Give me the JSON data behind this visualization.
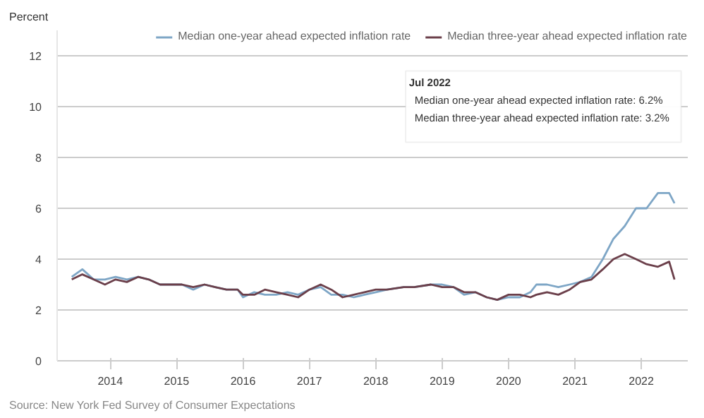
{
  "chart_data": {
    "type": "line",
    "ylabel": "Percent",
    "x": [
      2013.42,
      2013.58,
      2013.75,
      2013.92,
      2014.08,
      2014.25,
      2014.42,
      2014.58,
      2014.75,
      2014.92,
      2015.08,
      2015.25,
      2015.42,
      2015.58,
      2015.75,
      2015.92,
      2016.0,
      2016.17,
      2016.33,
      2016.5,
      2016.67,
      2016.83,
      2017.0,
      2017.17,
      2017.33,
      2017.5,
      2017.67,
      2017.83,
      2018.0,
      2018.17,
      2018.42,
      2018.58,
      2018.83,
      2019.0,
      2019.17,
      2019.33,
      2019.5,
      2019.67,
      2019.83,
      2020.0,
      2020.17,
      2020.33,
      2020.42,
      2020.58,
      2020.75,
      2020.92,
      2021.08,
      2021.25,
      2021.42,
      2021.58,
      2021.75,
      2021.92,
      2022.08,
      2022.25,
      2022.42,
      2022.5
    ],
    "series": [
      {
        "name": "Median one-year ahead expected inflation rate",
        "color": "#7ea6c6",
        "values": [
          3.3,
          3.6,
          3.2,
          3.2,
          3.3,
          3.2,
          3.3,
          3.2,
          3.0,
          3.0,
          3.0,
          2.8,
          3.0,
          2.9,
          2.8,
          2.8,
          2.5,
          2.7,
          2.6,
          2.6,
          2.7,
          2.6,
          2.8,
          2.9,
          2.6,
          2.6,
          2.5,
          2.6,
          2.7,
          2.8,
          2.9,
          2.9,
          3.0,
          3.0,
          2.9,
          2.6,
          2.7,
          2.5,
          2.4,
          2.5,
          2.5,
          2.7,
          3.0,
          3.0,
          2.9,
          3.0,
          3.1,
          3.3,
          4.0,
          4.8,
          5.3,
          6.0,
          6.0,
          6.6,
          6.6,
          6.2
        ]
      },
      {
        "name": "Median three-year ahead expected inflation rate",
        "color": "#6b3f4a",
        "values": [
          3.2,
          3.4,
          3.2,
          3.0,
          3.2,
          3.1,
          3.3,
          3.2,
          3.0,
          3.0,
          3.0,
          2.9,
          3.0,
          2.9,
          2.8,
          2.8,
          2.6,
          2.6,
          2.8,
          2.7,
          2.6,
          2.5,
          2.8,
          3.0,
          2.8,
          2.5,
          2.6,
          2.7,
          2.8,
          2.8,
          2.9,
          2.9,
          3.0,
          2.9,
          2.9,
          2.7,
          2.7,
          2.5,
          2.4,
          2.6,
          2.6,
          2.5,
          2.6,
          2.7,
          2.6,
          2.8,
          3.1,
          3.2,
          3.6,
          4.0,
          4.2,
          4.0,
          3.8,
          3.7,
          3.9,
          3.2
        ]
      }
    ],
    "xlim": [
      2013.2,
      2022.7
    ],
    "xticks": [
      2014,
      2015,
      2016,
      2017,
      2018,
      2019,
      2020,
      2021,
      2022
    ],
    "ylim": [
      0,
      13
    ],
    "yticks": [
      0,
      2,
      4,
      6,
      8,
      10,
      12
    ],
    "grid": "y",
    "legend": "top",
    "marker": "none",
    "line_style": "solid",
    "annotations": [
      "Jul 2022",
      "Median one-year ahead expected inflation rate: 6.2%",
      "Median three-year ahead expected inflation rate: 3.2%",
      "Source: New York Fed Survey of Consumer Expectations"
    ]
  }
}
